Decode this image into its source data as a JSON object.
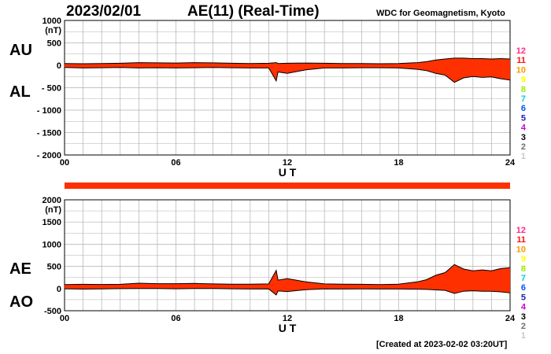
{
  "header": {
    "date": "2023/02/01",
    "title": "AE(11) (Real-Time)",
    "source": "WDC for Geomagnetism, Kyoto"
  },
  "footer": {
    "created": "[Created at 2023-02-02 03:20UT]"
  },
  "station_scale": {
    "labels": [
      "12",
      "11",
      "10",
      "9",
      "8",
      "7",
      "6",
      "5",
      "4",
      "3",
      "2",
      "1"
    ],
    "colors": [
      "#ff2a8a",
      "#ff1010",
      "#ff9900",
      "#ffff00",
      "#9be800",
      "#00d0d0",
      "#0050ff",
      "#2020b0",
      "#d000d0",
      "#000000",
      "#707070",
      "#c8c8c8"
    ]
  },
  "colors": {
    "fill": "#ff3000",
    "fill_alt": "#ffa030",
    "line": "#000000",
    "grid": "#b0b0b0"
  },
  "chart_data": [
    {
      "type": "area",
      "panel": "AU/AL",
      "series_labels": [
        "AU",
        "AL"
      ],
      "unit": "(nT)",
      "xlabel": "U T",
      "xlim": [
        0,
        24
      ],
      "xticks": [
        "00",
        "06",
        "12",
        "18",
        "24"
      ],
      "ylim": [
        -2000,
        1000
      ],
      "yticks": [
        "1000",
        "500",
        "0",
        "- 500",
        "- 1000",
        "- 1500",
        "- 2000"
      ],
      "grid": true,
      "x": [
        0,
        1,
        2,
        3,
        4,
        5,
        6,
        7,
        8,
        9,
        10,
        11,
        11.4,
        11.5,
        12,
        13,
        14,
        15,
        16,
        17,
        18,
        19,
        19.5,
        20,
        20.5,
        21,
        21.5,
        22,
        22.5,
        23,
        23.5,
        24
      ],
      "series": [
        {
          "name": "AU",
          "values": [
            40,
            35,
            38,
            45,
            60,
            55,
            50,
            60,
            55,
            45,
            40,
            45,
            60,
            40,
            45,
            50,
            45,
            40,
            40,
            35,
            40,
            60,
            80,
            120,
            140,
            160,
            160,
            150,
            150,
            140,
            150,
            140
          ]
        },
        {
          "name": "AL",
          "values": [
            -50,
            -60,
            -55,
            -50,
            -60,
            -55,
            -60,
            -55,
            -50,
            -55,
            -60,
            -60,
            -350,
            -150,
            -180,
            -100,
            -60,
            -60,
            -55,
            -55,
            -60,
            -90,
            -120,
            -180,
            -220,
            -380,
            -280,
            -250,
            -270,
            -260,
            -300,
            -330
          ]
        }
      ]
    },
    {
      "type": "area",
      "panel": "AE/AO",
      "series_labels": [
        "AE",
        "AO"
      ],
      "unit": "(nT)",
      "xlabel": "U T",
      "xlim": [
        0,
        24
      ],
      "xticks": [
        "00",
        "06",
        "12",
        "18",
        "24"
      ],
      "ylim": [
        -500,
        2000
      ],
      "yticks": [
        "2000",
        "1500",
        "1000",
        "500",
        "0",
        "-500"
      ],
      "grid": true,
      "x": [
        0,
        1,
        2,
        3,
        4,
        5,
        6,
        7,
        8,
        9,
        10,
        11,
        11.4,
        11.5,
        12,
        13,
        14,
        15,
        16,
        17,
        18,
        19,
        19.5,
        20,
        20.5,
        21,
        21.5,
        22,
        22.5,
        23,
        23.5,
        24
      ],
      "series": [
        {
          "name": "AE",
          "values": [
            90,
            95,
            93,
            95,
            120,
            110,
            110,
            115,
            105,
            100,
            100,
            105,
            410,
            190,
            225,
            150,
            105,
            100,
            95,
            90,
            100,
            150,
            200,
            300,
            360,
            540,
            440,
            400,
            420,
            400,
            450,
            470
          ]
        },
        {
          "name": "AO",
          "values": [
            -5,
            -12,
            -8,
            -2,
            0,
            0,
            -5,
            2,
            2,
            -5,
            -10,
            -8,
            -145,
            -55,
            -68,
            -25,
            -8,
            -10,
            -8,
            -10,
            -10,
            -15,
            -20,
            -30,
            -40,
            -110,
            -60,
            -50,
            -60,
            -60,
            -75,
            -95
          ]
        }
      ]
    }
  ]
}
